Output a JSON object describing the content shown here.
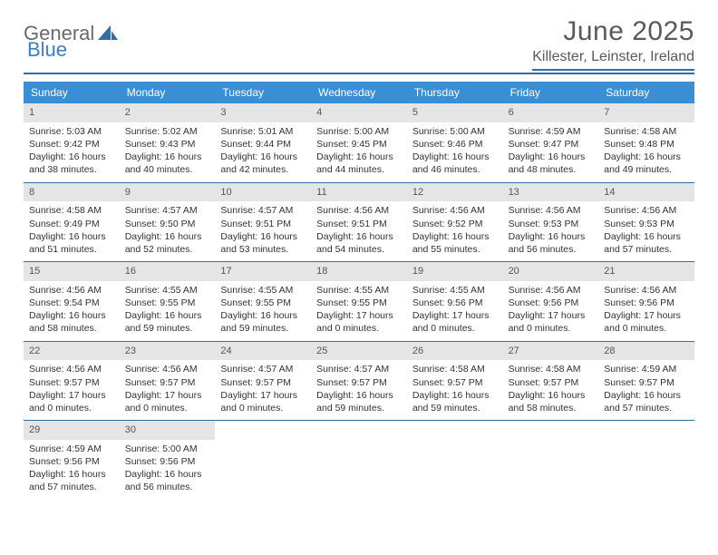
{
  "logo": {
    "text1": "General",
    "text2": "Blue"
  },
  "title": "June 2025",
  "location": "Killester, Leinster, Ireland",
  "weekdays": [
    "Sunday",
    "Monday",
    "Tuesday",
    "Wednesday",
    "Thursday",
    "Friday",
    "Saturday"
  ],
  "colors": {
    "header_bar": "#3a8fd4",
    "rule": "#2f6fa7",
    "daynum_bg": "#e5e5e5",
    "text": "#333333",
    "title_text": "#5a5a5a"
  },
  "layout": {
    "cols": 7,
    "rows": 5,
    "cell_font_pt": 8,
    "weekday_font_pt": 9,
    "title_font_pt": 22
  },
  "days": [
    {
      "n": 1,
      "sunrise": "5:03 AM",
      "sunset": "9:42 PM",
      "daylight": "16 hours and 38 minutes."
    },
    {
      "n": 2,
      "sunrise": "5:02 AM",
      "sunset": "9:43 PM",
      "daylight": "16 hours and 40 minutes."
    },
    {
      "n": 3,
      "sunrise": "5:01 AM",
      "sunset": "9:44 PM",
      "daylight": "16 hours and 42 minutes."
    },
    {
      "n": 4,
      "sunrise": "5:00 AM",
      "sunset": "9:45 PM",
      "daylight": "16 hours and 44 minutes."
    },
    {
      "n": 5,
      "sunrise": "5:00 AM",
      "sunset": "9:46 PM",
      "daylight": "16 hours and 46 minutes."
    },
    {
      "n": 6,
      "sunrise": "4:59 AM",
      "sunset": "9:47 PM",
      "daylight": "16 hours and 48 minutes."
    },
    {
      "n": 7,
      "sunrise": "4:58 AM",
      "sunset": "9:48 PM",
      "daylight": "16 hours and 49 minutes."
    },
    {
      "n": 8,
      "sunrise": "4:58 AM",
      "sunset": "9:49 PM",
      "daylight": "16 hours and 51 minutes."
    },
    {
      "n": 9,
      "sunrise": "4:57 AM",
      "sunset": "9:50 PM",
      "daylight": "16 hours and 52 minutes."
    },
    {
      "n": 10,
      "sunrise": "4:57 AM",
      "sunset": "9:51 PM",
      "daylight": "16 hours and 53 minutes."
    },
    {
      "n": 11,
      "sunrise": "4:56 AM",
      "sunset": "9:51 PM",
      "daylight": "16 hours and 54 minutes."
    },
    {
      "n": 12,
      "sunrise": "4:56 AM",
      "sunset": "9:52 PM",
      "daylight": "16 hours and 55 minutes."
    },
    {
      "n": 13,
      "sunrise": "4:56 AM",
      "sunset": "9:53 PM",
      "daylight": "16 hours and 56 minutes."
    },
    {
      "n": 14,
      "sunrise": "4:56 AM",
      "sunset": "9:53 PM",
      "daylight": "16 hours and 57 minutes."
    },
    {
      "n": 15,
      "sunrise": "4:56 AM",
      "sunset": "9:54 PM",
      "daylight": "16 hours and 58 minutes."
    },
    {
      "n": 16,
      "sunrise": "4:55 AM",
      "sunset": "9:55 PM",
      "daylight": "16 hours and 59 minutes."
    },
    {
      "n": 17,
      "sunrise": "4:55 AM",
      "sunset": "9:55 PM",
      "daylight": "16 hours and 59 minutes."
    },
    {
      "n": 18,
      "sunrise": "4:55 AM",
      "sunset": "9:55 PM",
      "daylight": "17 hours and 0 minutes."
    },
    {
      "n": 19,
      "sunrise": "4:55 AM",
      "sunset": "9:56 PM",
      "daylight": "17 hours and 0 minutes."
    },
    {
      "n": 20,
      "sunrise": "4:56 AM",
      "sunset": "9:56 PM",
      "daylight": "17 hours and 0 minutes."
    },
    {
      "n": 21,
      "sunrise": "4:56 AM",
      "sunset": "9:56 PM",
      "daylight": "17 hours and 0 minutes."
    },
    {
      "n": 22,
      "sunrise": "4:56 AM",
      "sunset": "9:57 PM",
      "daylight": "17 hours and 0 minutes."
    },
    {
      "n": 23,
      "sunrise": "4:56 AM",
      "sunset": "9:57 PM",
      "daylight": "17 hours and 0 minutes."
    },
    {
      "n": 24,
      "sunrise": "4:57 AM",
      "sunset": "9:57 PM",
      "daylight": "17 hours and 0 minutes."
    },
    {
      "n": 25,
      "sunrise": "4:57 AM",
      "sunset": "9:57 PM",
      "daylight": "16 hours and 59 minutes."
    },
    {
      "n": 26,
      "sunrise": "4:58 AM",
      "sunset": "9:57 PM",
      "daylight": "16 hours and 59 minutes."
    },
    {
      "n": 27,
      "sunrise": "4:58 AM",
      "sunset": "9:57 PM",
      "daylight": "16 hours and 58 minutes."
    },
    {
      "n": 28,
      "sunrise": "4:59 AM",
      "sunset": "9:57 PM",
      "daylight": "16 hours and 57 minutes."
    },
    {
      "n": 29,
      "sunrise": "4:59 AM",
      "sunset": "9:56 PM",
      "daylight": "16 hours and 57 minutes."
    },
    {
      "n": 30,
      "sunrise": "5:00 AM",
      "sunset": "9:56 PM",
      "daylight": "16 hours and 56 minutes."
    }
  ],
  "labels": {
    "sunrise": "Sunrise:",
    "sunset": "Sunset:",
    "daylight": "Daylight:"
  }
}
